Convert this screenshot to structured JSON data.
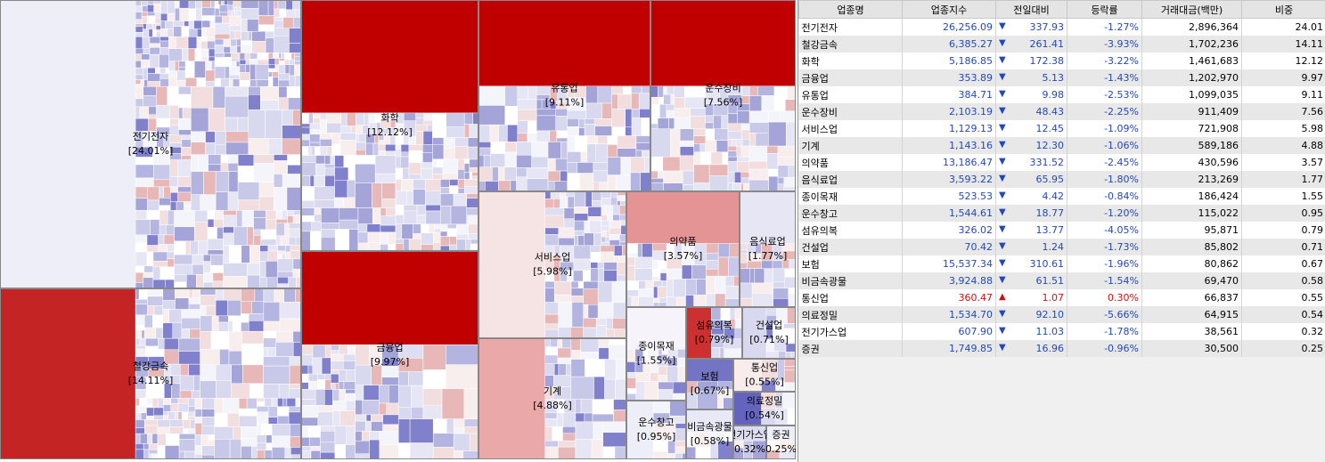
{
  "treemap": {
    "sectors": [
      {
        "name": "전기전자",
        "share": "[24.01%]",
        "color": "#eeeef8"
      },
      {
        "name": "철강금속",
        "share": "[14.11%]",
        "color": "#c42424"
      },
      {
        "name": "화학",
        "share": "[12.12%]",
        "color": "#c00000"
      },
      {
        "name": "금융업",
        "share": "[9.97%]",
        "color": "#c00000"
      },
      {
        "name": "유통업",
        "share": "[9.11%]",
        "color": "#c00000"
      },
      {
        "name": "운수장비",
        "share": "[7.56%]",
        "color": "#c00000"
      },
      {
        "name": "서비스업",
        "share": "[5.98%]",
        "color": "#f6e4e4"
      },
      {
        "name": "기계",
        "share": "[4.88%]",
        "color": "#eaa8a8"
      },
      {
        "name": "의약품",
        "share": "[3.57%]",
        "color": "#e49494"
      },
      {
        "name": "음식료업",
        "share": "[1.77%]",
        "color": "#e6e6f4"
      },
      {
        "name": "종이목재",
        "share": "[1.55%]",
        "color": "#f6f4fa"
      },
      {
        "name": "운수창고",
        "share": "[0.95%]",
        "color": "#eeeef8"
      },
      {
        "name": "섬유의복",
        "share": "[0.79%]",
        "color": "#cc3030"
      },
      {
        "name": "건설업",
        "share": "[0.71%]",
        "color": "#d8d8ee"
      },
      {
        "name": "보험",
        "share": "[0.67%]",
        "color": "#7474c4"
      },
      {
        "name": "통신업",
        "share": "[0.55%]",
        "color": "#f8ecec"
      },
      {
        "name": "의료정밀",
        "share": "[0.54%]",
        "color": "#6464bc"
      },
      {
        "name": "비금속광물",
        "share": "[0.58%]",
        "color": "#e8e8f6"
      },
      {
        "name": "전기가스업",
        "share": "[0.32%]",
        "color": "#dcdcf0"
      },
      {
        "name": "증권",
        "share": "[0.25%]",
        "color": "#eeeef8"
      }
    ]
  },
  "table": {
    "header": [
      "업종명",
      "업종지수",
      "전일대비",
      "등락률",
      "거래대금(백만)",
      "비중"
    ],
    "rows": [
      [
        "전기전자",
        "26,256.09",
        "▼",
        "337.93",
        "-1.27%",
        "2,896,364",
        "24.01"
      ],
      [
        "철강금속",
        "6,385.27",
        "▼",
        "261.41",
        "-3.93%",
        "1,702,236",
        "14.11"
      ],
      [
        "화학",
        "5,186.85",
        "▼",
        "172.38",
        "-3.22%",
        "1,461,683",
        "12.12"
      ],
      [
        "금융업",
        "353.89",
        "▼",
        "5.13",
        "-1.43%",
        "1,202,970",
        "9.97"
      ],
      [
        "유통업",
        "384.71",
        "▼",
        "9.98",
        "-2.53%",
        "1,099,035",
        "9.11"
      ],
      [
        "운수장비",
        "2,103.19",
        "▼",
        "48.43",
        "-2.25%",
        "911,409",
        "7.56"
      ],
      [
        "서비스업",
        "1,129.13",
        "▼",
        "12.45",
        "-1.09%",
        "721,908",
        "5.98"
      ],
      [
        "기계",
        "1,143.16",
        "▼",
        "12.30",
        "-1.06%",
        "589,186",
        "4.88"
      ],
      [
        "의약품",
        "13,186.47",
        "▼",
        "331.52",
        "-2.45%",
        "430,596",
        "3.57"
      ],
      [
        "음식료업",
        "3,593.22",
        "▼",
        "65.95",
        "-1.80%",
        "213,269",
        "1.77"
      ],
      [
        "종이목재",
        "523.53",
        "▼",
        "4.42",
        "-0.84%",
        "186,424",
        "1.55"
      ],
      [
        "운수창고",
        "1,544.61",
        "▼",
        "18.77",
        "-1.20%",
        "115,022",
        "0.95"
      ],
      [
        "섬유의복",
        "326.02",
        "▼",
        "13.77",
        "-4.05%",
        "95,871",
        "0.79"
      ],
      [
        "건설업",
        "70.42",
        "▼",
        "1.24",
        "-1.73%",
        "85,802",
        "0.71"
      ],
      [
        "보험",
        "15,537.34",
        "▼",
        "310.61",
        "-1.96%",
        "80,862",
        "0.67"
      ],
      [
        "비금속광물",
        "3,924.88",
        "▼",
        "61.51",
        "-1.54%",
        "69,470",
        "0.58"
      ],
      [
        "통신업",
        "360.47",
        "▲",
        "1.07",
        "0.30%",
        "66,837",
        "0.55"
      ],
      [
        "의료정밀",
        "1,534.70",
        "▼",
        "92.10",
        "-5.66%",
        "64,915",
        "0.54"
      ],
      [
        "전기가스업",
        "607.90",
        "▼",
        "11.03",
        "-1.78%",
        "38,561",
        "0.32"
      ],
      [
        "증권",
        "1,749.85",
        "▼",
        "16.96",
        "-0.96%",
        "30,500",
        "0.25"
      ]
    ]
  }
}
